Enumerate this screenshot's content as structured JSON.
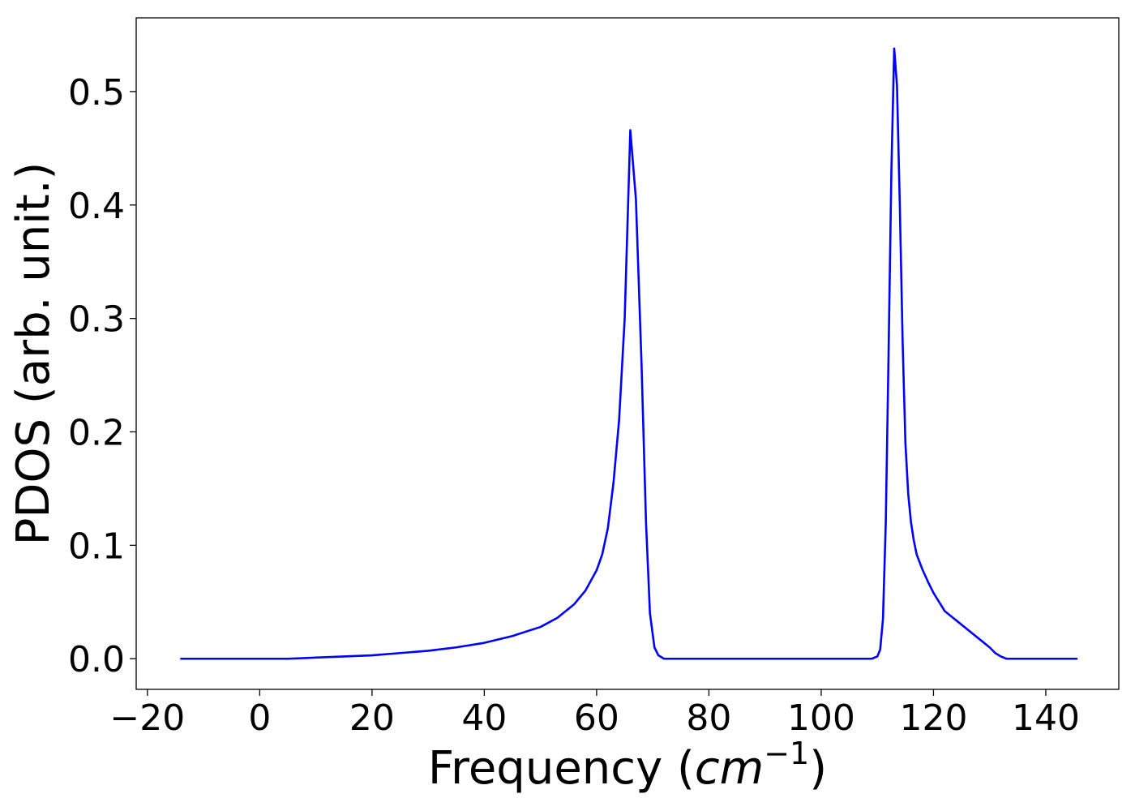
{
  "chart_data": {
    "type": "line",
    "title": "",
    "xlabel": {
      "prefix": "Frequency (",
      "italic": "cm",
      "superscript": "−1",
      "suffix": ")"
    },
    "ylabel": "PDOS (arb. unit.)",
    "xlim": [
      -22,
      153
    ],
    "ylim": [
      -0.027,
      0.565
    ],
    "xticks": [
      -20,
      0,
      20,
      40,
      60,
      80,
      100,
      120,
      140
    ],
    "xtick_labels": [
      "−20",
      "0",
      "20",
      "40",
      "60",
      "80",
      "100",
      "120",
      "140"
    ],
    "yticks": [
      0.0,
      0.1,
      0.2,
      0.3,
      0.4,
      0.5
    ],
    "ytick_labels": [
      "0.0",
      "0.1",
      "0.2",
      "0.3",
      "0.4",
      "0.5"
    ],
    "grid": false,
    "legend": "none",
    "series": [
      {
        "color": "#0000ff",
        "x": [
          -14,
          0,
          5,
          10,
          15,
          20,
          25,
          30,
          35,
          40,
          45,
          50,
          53,
          56,
          58,
          60,
          61,
          62,
          63,
          64,
          65,
          66,
          67,
          68,
          68.8,
          69.5,
          70.3,
          71,
          72,
          80,
          100,
          109,
          110,
          110.5,
          111,
          111.5,
          112,
          112.5,
          113,
          113.5,
          114,
          114.5,
          115,
          115.5,
          116,
          116.5,
          117,
          118,
          119,
          120,
          121,
          122,
          124,
          126,
          128,
          130,
          131,
          132,
          133,
          134,
          135,
          136,
          140,
          145.5
        ],
        "y": [
          0.0,
          0.0,
          0.0,
          0.001,
          0.002,
          0.003,
          0.005,
          0.007,
          0.01,
          0.014,
          0.02,
          0.028,
          0.036,
          0.048,
          0.06,
          0.078,
          0.092,
          0.115,
          0.155,
          0.21,
          0.3,
          0.466,
          0.405,
          0.26,
          0.12,
          0.04,
          0.01,
          0.003,
          0.0,
          0.0,
          0.0,
          0.0,
          0.002,
          0.008,
          0.035,
          0.12,
          0.27,
          0.43,
          0.538,
          0.505,
          0.4,
          0.28,
          0.19,
          0.145,
          0.12,
          0.104,
          0.092,
          0.079,
          0.068,
          0.058,
          0.05,
          0.042,
          0.034,
          0.026,
          0.018,
          0.01,
          0.005,
          0.002,
          0.0,
          0.0,
          0.0,
          0.0,
          0.0,
          0.0
        ]
      }
    ]
  }
}
